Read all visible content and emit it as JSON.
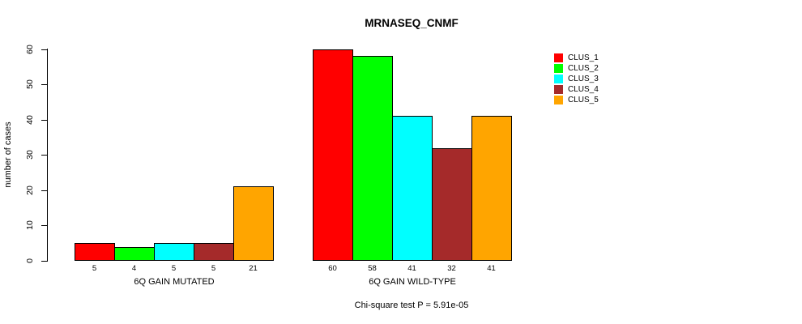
{
  "figure": {
    "title": "MRNASEQ_CNMF",
    "ylabel": "number of cases",
    "footnote": "Chi-square test P = 5.91e-05"
  },
  "chart_data": {
    "type": "bar",
    "title": "MRNASEQ_CNMF",
    "xlabel": "",
    "ylabel": "number of cases",
    "categories": [
      "6Q GAIN MUTATED",
      "6Q GAIN WILD-TYPE"
    ],
    "series": [
      {
        "name": "CLUS_1",
        "color": "#FF0000",
        "values": [
          5,
          60
        ]
      },
      {
        "name": "CLUS_2",
        "color": "#00FF00",
        "values": [
          4,
          58
        ]
      },
      {
        "name": "CLUS_3",
        "color": "#00FFFF",
        "values": [
          5,
          41
        ]
      },
      {
        "name": "CLUS_4",
        "color": "#A52A2A",
        "values": [
          5,
          32
        ]
      },
      {
        "name": "CLUS_5",
        "color": "#FFA500",
        "values": [
          21,
          41
        ]
      }
    ],
    "bar_value_labels": [
      [
        5,
        4,
        5,
        5,
        21
      ],
      [
        60,
        58,
        41,
        32,
        41
      ]
    ],
    "yticks": [
      0,
      10,
      20,
      30,
      40,
      50,
      60
    ],
    "ylim": [
      0,
      60
    ],
    "grid": false,
    "legend_position": "right",
    "legend_entries": [
      "CLUS_1",
      "CLUS_2",
      "CLUS_3",
      "CLUS_4",
      "CLUS_5"
    ],
    "annotation": "Chi-square test P = 5.91e-05",
    "bar_edge_color": "#000000",
    "background_color": "#FFFFFF"
  }
}
